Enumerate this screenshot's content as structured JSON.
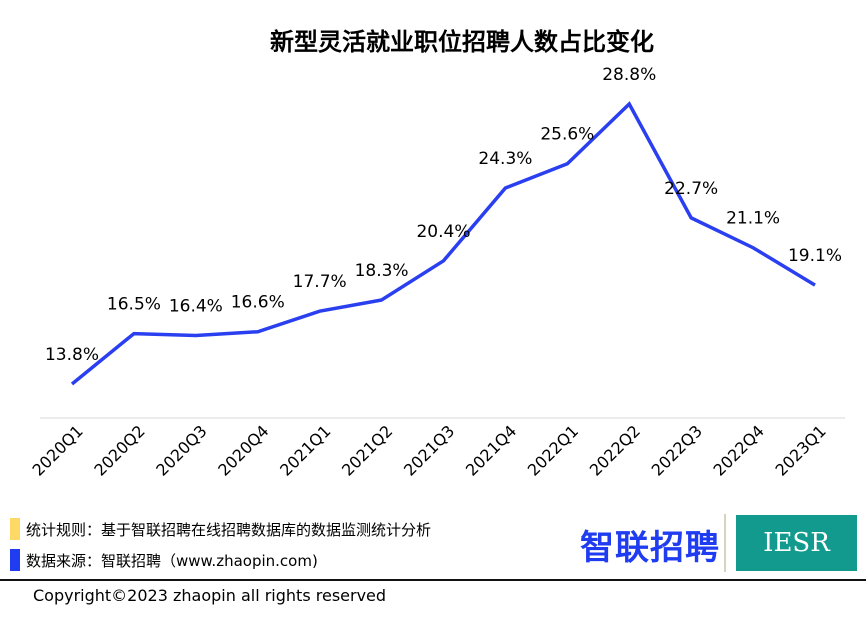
{
  "chart_data": {
    "type": "line",
    "title": "新型灵活就业职位招聘人数占比变化",
    "categories": [
      "2020Q1",
      "2020Q2",
      "2020Q3",
      "2020Q4",
      "2021Q1",
      "2021Q2",
      "2021Q3",
      "2021Q4",
      "2022Q1",
      "2022Q2",
      "2022Q3",
      "2022Q4",
      "2023Q1"
    ],
    "values": [
      13.8,
      16.5,
      16.4,
      16.6,
      17.7,
      18.3,
      20.4,
      24.3,
      25.6,
      28.8,
      22.7,
      21.1,
      19.1
    ],
    "data_labels": [
      "13.8%",
      "16.5%",
      "16.4%",
      "16.6%",
      "17.7%",
      "18.3%",
      "20.4%",
      "24.3%",
      "25.6%",
      "28.8%",
      "22.7%",
      "21.1%",
      "19.1%"
    ],
    "ylim": [
      12,
      30
    ],
    "grid": false,
    "line_color": "#2a3ff0"
  },
  "notes": [
    {
      "text": "统计规则：基于智联招聘在线招聘数据库的数据监测统计分析",
      "color": "#ffd966"
    },
    {
      "text": "数据来源：智联招聘（www.zhaopin.com)",
      "color": "#1f3cf0"
    }
  ],
  "logos": {
    "zhaopin": "智联招聘",
    "iesr": "IESR"
  },
  "copyright": "Copyright©2023 zhaopin all rights reserved"
}
